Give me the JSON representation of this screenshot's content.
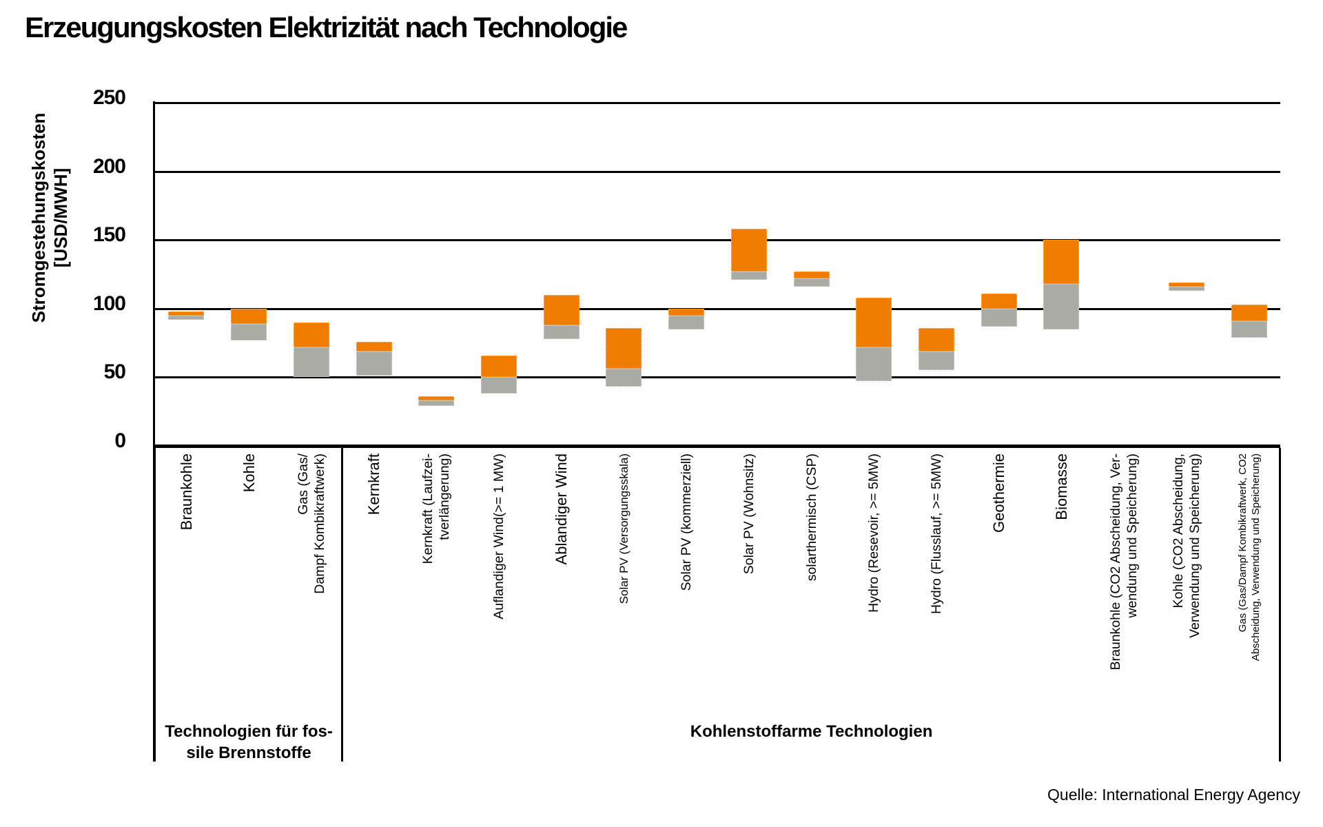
{
  "title": "Erzeugungskosten Elektrizität nach Technologie",
  "source": "Quelle: International Energy Agency",
  "y_axis": {
    "title_line1": "Stromgestehungskosten",
    "title_line2": "[USD/MWH]"
  },
  "chart_data": {
    "type": "bar",
    "variant": "floating range bars (min-max) split into a lower gray segment and an upper orange segment",
    "title": "Erzeugungskosten Elektrizität nach Technologie",
    "ylabel": "Stromgestehungskosten [USD/MWH]",
    "unit": "USD/MWH",
    "ylim": [
      0,
      250
    ],
    "yticks": [
      0,
      50,
      100,
      150,
      200,
      250
    ],
    "grid": "horizontal black gridlines every 50, thick baseline at 0",
    "legend": "none",
    "colors": {
      "low_segment": "#ABABA6",
      "high_segment": "#F07D00",
      "axis": "#000000",
      "background": "#FFFFFF"
    },
    "segment_meaning": {
      "gray": "range from minimum up to split value",
      "orange": "range from split value up to maximum"
    },
    "categories": [
      {
        "id": "braunkohle",
        "label": "Braunkohle",
        "lines": [
          "Braunkohle"
        ],
        "size": "lg",
        "group": 0,
        "min": 92,
        "split": 95,
        "max": 98
      },
      {
        "id": "kohle",
        "label": "Kohle",
        "lines": [
          "Kohle"
        ],
        "size": "lg",
        "group": 0,
        "min": 77,
        "split": 89,
        "max": 100
      },
      {
        "id": "gas-kombikraftwerk",
        "label": "Gas (Gas/Dampf Kombikraftwerk)",
        "lines": [
          "Gas (Gas/",
          "Dampf Kombikraftwerk)"
        ],
        "size": "md",
        "group": 0,
        "min": 50,
        "split": 72,
        "max": 90
      },
      {
        "id": "kernkraft",
        "label": "Kernkraft",
        "lines": [
          "Kernkraft"
        ],
        "size": "lg",
        "group": 1,
        "min": 51,
        "split": 69,
        "max": 76
      },
      {
        "id": "kernkraft-laufzeitverlaengerung",
        "label": "Kernkraft (Laufzeitverlängerung)",
        "lines": [
          "Kernkraft (Laufzei-",
          "tverlängerung)"
        ],
        "size": "md",
        "group": 1,
        "min": 29,
        "split": 33,
        "max": 36
      },
      {
        "id": "auflandiger-wind",
        "label": "Auflandiger Wind(>= 1 MW)",
        "lines": [
          "Auflandiger Wind(>= 1 MW)"
        ],
        "size": "md",
        "group": 1,
        "min": 38,
        "split": 50,
        "max": 66
      },
      {
        "id": "ablandiger-wind",
        "label": "Ablandiger Wind",
        "lines": [
          "Ablandiger Wind"
        ],
        "size": "lg",
        "group": 1,
        "min": 78,
        "split": 88,
        "max": 110
      },
      {
        "id": "solar-pv-versorgungsskala",
        "label": "Solar PV (Versorgungsskala)",
        "lines": [
          "Solar PV (Versorgungsskala)"
        ],
        "size": "sm",
        "group": 1,
        "min": 43,
        "split": 56,
        "max": 86
      },
      {
        "id": "solar-pv-kommerziell",
        "label": "Solar PV (kommerziell)",
        "lines": [
          "Solar PV (kommerziell)"
        ],
        "size": "md",
        "group": 1,
        "min": 85,
        "split": 95,
        "max": 100
      },
      {
        "id": "solar-pv-wohnsitz",
        "label": "Solar PV (Wohnsitz)",
        "lines": [
          "Solar PV (Wohnsitz)"
        ],
        "size": "md",
        "group": 1,
        "min": 121,
        "split": 127,
        "max": 158
      },
      {
        "id": "solarthermisch-csp",
        "label": "solarthermisch (CSP)",
        "lines": [
          "solarthermisch (CSP)"
        ],
        "size": "md",
        "group": 1,
        "min": 116,
        "split": 122,
        "max": 127
      },
      {
        "id": "hydro-resevoir",
        "label": "Hydro (Resevoir, >= 5MW)",
        "lines": [
          "Hydro (Resevoir, >= 5MW)"
        ],
        "size": "md",
        "group": 1,
        "min": 47,
        "split": 72,
        "max": 108
      },
      {
        "id": "hydro-flusslauf",
        "label": "Hydro (Flusslauf, >= 5MW)",
        "lines": [
          "Hydro (Flusslauf, >= 5MW)"
        ],
        "size": "md",
        "group": 1,
        "min": 55,
        "split": 69,
        "max": 86
      },
      {
        "id": "geothermie",
        "label": "Geothermie",
        "lines": [
          "Geothermie"
        ],
        "size": "lg",
        "group": 1,
        "min": 87,
        "split": 100,
        "max": 111
      },
      {
        "id": "biomasse",
        "label": "Biomasse",
        "lines": [
          "Biomasse"
        ],
        "size": "lg",
        "group": 1,
        "min": 85,
        "split": 118,
        "max": 150
      },
      {
        "id": "braunkohle-ccs",
        "label": "Braunkohle (CO2 Abscheidung, Verwendung und Speicherung)",
        "lines": [
          "Braunkohle (CO2 Abscheidung, Ver-",
          "wendung und Speicherung)"
        ],
        "size": "md",
        "group": 1,
        "min": null,
        "split": null,
        "max": null
      },
      {
        "id": "kohle-ccs",
        "label": "Kohle (CO2 Abscheidung, Verwendung und Speicherung)",
        "lines": [
          "Kohle (CO2 Abscheidung,",
          "Verwendung und Speicherung)"
        ],
        "size": "md",
        "group": 1,
        "min": 113,
        "split": 116,
        "max": 119
      },
      {
        "id": "gas-ccs",
        "label": "Gas (Gas/Dampf Kombikraftwerk, CO2 Abscheidung, Verwendung und Speicherung)",
        "lines": [
          "Gas (Gas/Dampf Kombikraftwerk, CO2",
          "Abscheidung, Verwendung und Speicherung)"
        ],
        "size": "xs",
        "group": 1,
        "min": 79,
        "split": 91,
        "max": 103
      }
    ],
    "groups": [
      {
        "label": "Technologien für fossile Brennstoffe",
        "lines": [
          "Technologien für fos-",
          "sile Brennstoffe"
        ],
        "start": 0,
        "end": 3
      },
      {
        "label": "Kohlenstoffarme Technologien",
        "lines": [
          "Kohlenstoffarme Technologien"
        ],
        "start": 3,
        "end": 18
      }
    ]
  }
}
